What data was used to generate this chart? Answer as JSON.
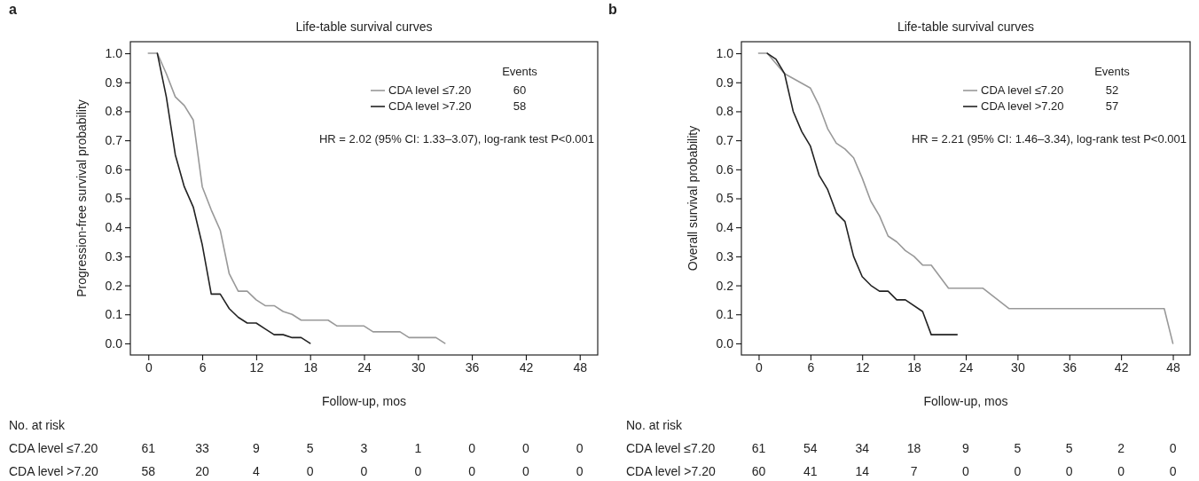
{
  "chart_data": [
    {
      "type": "line",
      "title": "Life-table survival curves",
      "xlabel": "Follow-up, mos",
      "ylabel": "Progression-free survival probability",
      "legend_title": "Events",
      "legend": "top right",
      "marker": "none",
      "line_style": "solid",
      "xlim": [
        -2,
        50
      ],
      "ylim": [
        -0.04,
        1.04
      ],
      "xticks": [
        0,
        6,
        12,
        18,
        24,
        30,
        36,
        42,
        48
      ],
      "yticks": [
        {
          "value": 0,
          "label": "0.0"
        },
        {
          "value": 0.1,
          "label": "0.1"
        },
        {
          "value": 0.2,
          "label": "0.2"
        },
        {
          "value": 0.3,
          "label": "0.3"
        },
        {
          "value": 0.4,
          "label": "0.4"
        },
        {
          "value": 0.5,
          "label": "0.5"
        },
        {
          "value": 0.6,
          "label": "0.6"
        },
        {
          "value": 0.7,
          "label": "0.7"
        },
        {
          "value": 0.8,
          "label": "0.8"
        },
        {
          "value": 0.9,
          "label": "0.9"
        },
        {
          "value": 1,
          "label": "1.0"
        }
      ],
      "series": [
        {
          "name": "CDA level ≤7.20",
          "color": "#999999",
          "x": [
            0,
            1,
            2,
            3,
            4,
            5,
            6,
            7,
            8,
            9,
            10,
            11,
            12,
            13,
            14,
            15,
            16,
            17,
            18,
            20,
            21,
            24,
            25,
            28,
            29,
            32,
            33
          ],
          "values": [
            1,
            1,
            0.93,
            0.85,
            0.82,
            0.77,
            0.54,
            0.46,
            0.39,
            0.24,
            0.18,
            0.18,
            0.15,
            0.13,
            0.13,
            0.11,
            0.1,
            0.08,
            0.08,
            0.08,
            0.06,
            0.06,
            0.04,
            0.04,
            0.02,
            0.02,
            0
          ]
        },
        {
          "name": "CDA level >7.20",
          "color": "#222222",
          "x": [
            1,
            2,
            3,
            4,
            5,
            6,
            7,
            8,
            9,
            10,
            11,
            12,
            13,
            14,
            15,
            16,
            17,
            18
          ],
          "values": [
            1,
            0.85,
            0.65,
            0.54,
            0.47,
            0.34,
            0.17,
            0.17,
            0.12,
            0.09,
            0.07,
            0.07,
            0.05,
            0.03,
            0.03,
            0.02,
            0.02,
            0
          ]
        }
      ],
      "annotations": [
        "a",
        "60",
        "58",
        "HR = 2.02 (95% CI: 1.33–3.07), log-rank test P<0.001",
        "No. at risk",
        "CDA level ≤7.20",
        "CDA level >7.20",
        "61",
        "33",
        "9",
        "5",
        "3",
        "1",
        "0",
        "0",
        "0",
        "58",
        "20",
        "4",
        "0",
        "0",
        "0",
        "0",
        "0",
        "0"
      ]
    },
    {
      "type": "line",
      "title": "Life-table survival curves",
      "xlabel": "Follow-up, mos",
      "ylabel": "Overall survival probability",
      "legend_title": "Events",
      "legend": "top right",
      "marker": "none",
      "line_style": "solid",
      "xlim": [
        -2,
        50
      ],
      "ylim": [
        -0.04,
        1.04
      ],
      "xticks": [
        0,
        6,
        12,
        18,
        24,
        30,
        36,
        42,
        48
      ],
      "yticks": [
        {
          "value": 0,
          "label": "0.0"
        },
        {
          "value": 0.1,
          "label": "0.1"
        },
        {
          "value": 0.2,
          "label": "0.2"
        },
        {
          "value": 0.3,
          "label": "0.3"
        },
        {
          "value": 0.4,
          "label": "0.4"
        },
        {
          "value": 0.5,
          "label": "0.5"
        },
        {
          "value": 0.6,
          "label": "0.6"
        },
        {
          "value": 0.7,
          "label": "0.7"
        },
        {
          "value": 0.8,
          "label": "0.8"
        },
        {
          "value": 0.9,
          "label": "0.9"
        },
        {
          "value": 1,
          "label": "1.0"
        }
      ],
      "series": [
        {
          "name": "CDA level ≤7.20",
          "color": "#999999",
          "x": [
            0,
            1,
            3,
            6,
            7,
            8,
            9,
            10,
            11,
            12,
            13,
            14,
            15,
            16,
            17,
            18,
            19,
            20,
            22,
            26,
            29,
            47,
            48
          ],
          "values": [
            1,
            1,
            0.93,
            0.88,
            0.82,
            0.74,
            0.69,
            0.67,
            0.64,
            0.57,
            0.49,
            0.44,
            0.37,
            0.35,
            0.32,
            0.3,
            0.27,
            0.27,
            0.19,
            0.19,
            0.12,
            0.12,
            0
          ]
        },
        {
          "name": "CDA level >7.20",
          "color": "#222222",
          "x": [
            1,
            2,
            3,
            4,
            5,
            6,
            7,
            8,
            9,
            10,
            11,
            12,
            13,
            14,
            15,
            16,
            17,
            19,
            20,
            23
          ],
          "values": [
            1,
            0.98,
            0.93,
            0.8,
            0.73,
            0.68,
            0.58,
            0.53,
            0.45,
            0.42,
            0.3,
            0.23,
            0.2,
            0.18,
            0.18,
            0.15,
            0.15,
            0.11,
            0.03,
            0.03
          ]
        }
      ],
      "annotations": [
        "b",
        "52",
        "57",
        "HR = 2.21 (95% CI: 1.46–3.34), log-rank test P<0.001",
        "No. at risk",
        "CDA level ≤7.20",
        "CDA level >7.20",
        "61",
        "54",
        "34",
        "18",
        "9",
        "5",
        "5",
        "2",
        "0",
        "60",
        "41",
        "14",
        "7",
        "0",
        "0",
        "0",
        "0",
        "0"
      ]
    }
  ]
}
